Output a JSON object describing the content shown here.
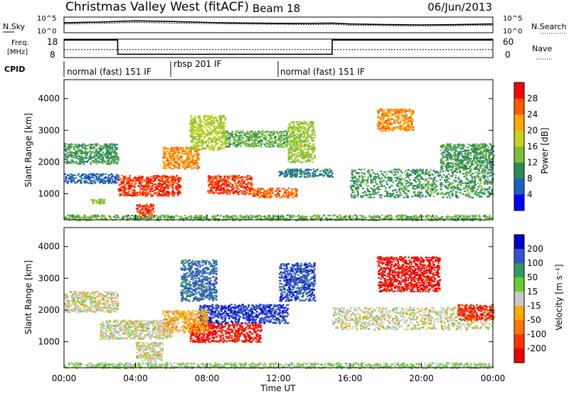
{
  "header": {
    "station": "Christmas Valley West (fitACF)",
    "beam": "Beam 18",
    "date": "06/Jun/2013"
  },
  "noise_panel": {
    "left_label": "N.Sky",
    "right_label": "N.Search",
    "left_ticks": [
      "10^5",
      "10^0"
    ],
    "right_ticks": [
      "10^5",
      "10^0"
    ]
  },
  "freq_panel": {
    "left_label_1": "Freq.",
    "left_label_2": "[MHz]",
    "right_label": "Nave",
    "left_ticks": [
      "18",
      "8"
    ],
    "right_ticks": [
      "60",
      "0"
    ]
  },
  "cpid_panel": {
    "label": "CPID",
    "segments": [
      {
        "name": "normal (fast) 151 IF",
        "start_hour": 0,
        "end_hour": 6
      },
      {
        "name": "rbsp 201 IF",
        "start_hour": 6,
        "end_hour": 12
      },
      {
        "name": "normal (fast) 151 IF",
        "start_hour": 12,
        "end_hour": 24
      }
    ]
  },
  "x_axis": {
    "label": "Time UT",
    "ticks": [
      "00:00",
      "04:00",
      "08:00",
      "12:00",
      "16:00",
      "20:00",
      "00:00"
    ]
  },
  "power_panel": {
    "ylabel": "Slant Range [km]",
    "yticks": [
      "1000",
      "2000",
      "3000",
      "4000"
    ],
    "colorbar_label": "Power [dB]",
    "colorbar_ticks": [
      "28",
      "24",
      "20",
      "16",
      "12",
      "8",
      "4"
    ],
    "colors": [
      "#0000ff",
      "#1f5fbf",
      "#2e8b57",
      "#7cbf3a",
      "#c8d21e",
      "#ffa500",
      "#ff5a00",
      "#ff0000"
    ]
  },
  "velocity_panel": {
    "ylabel": "Slant Range [km]",
    "yticks": [
      "1000",
      "2000",
      "3000",
      "4000"
    ],
    "colorbar_label": "Velocity [m s⁻¹]",
    "colorbar_ticks": [
      "200",
      "100",
      "50",
      "15",
      "-15",
      "-50",
      "-100",
      "-200"
    ],
    "colors": [
      "#0000cc",
      "#3355cc",
      "#339966",
      "#66cc33",
      "#c8c8c8",
      "#ffaa00",
      "#ff7700",
      "#ff3300",
      "#ee0000"
    ]
  },
  "chart_data": [
    {
      "type": "line",
      "title": "N.Sky / N.Search",
      "x": [
        0,
        2,
        4,
        6,
        8,
        10,
        12,
        14,
        15,
        16,
        18,
        20,
        22,
        24
      ],
      "series": [
        {
          "name": "N.Sky",
          "values": [
            3.2,
            3.4,
            3.8,
            3.6,
            3.3,
            3.1,
            3.0,
            3.0,
            3.1,
            2.8,
            2.6,
            2.5,
            2.6,
            2.8
          ]
        },
        {
          "name": "N.Search",
          "values": [
            2.8,
            3.0,
            3.3,
            3.1,
            2.9,
            2.8,
            2.7,
            2.6,
            2.7,
            2.4,
            2.3,
            2.2,
            2.3,
            2.4
          ]
        }
      ],
      "ylim": [
        0,
        5
      ]
    },
    {
      "type": "line",
      "title": "Freq./Nave",
      "x": [
        0,
        3.0,
        3.01,
        15.0,
        15.01,
        24
      ],
      "series": [
        {
          "name": "Freq.",
          "values": [
            17.5,
            17.5,
            9.8,
            9.8,
            17.5,
            17.5
          ]
        },
        {
          "name": "Nave",
          "values": [
            26,
            26,
            26,
            26,
            26,
            26
          ]
        }
      ],
      "ylim": [
        8,
        18
      ]
    },
    {
      "type": "heatmap",
      "title": "Power [dB]",
      "xlabel": "Time UT",
      "ylabel": "Slant Range [km]",
      "xlim": [
        0,
        24
      ],
      "ylim": [
        180,
        4600
      ],
      "value_range": [
        0,
        30
      ],
      "regions": [
        {
          "t0": 0.0,
          "t1": 3.0,
          "r0": 1950,
          "r1": 2600,
          "v": 10
        },
        {
          "t0": 0.0,
          "t1": 3.0,
          "r0": 1350,
          "r1": 1650,
          "v": 6
        },
        {
          "t0": 1.5,
          "t1": 2.3,
          "r0": 700,
          "r1": 850,
          "v": 14
        },
        {
          "t0": 3.0,
          "t1": 6.5,
          "r0": 950,
          "r1": 1600,
          "v": 26
        },
        {
          "t0": 4.0,
          "t1": 5.0,
          "r0": 250,
          "r1": 700,
          "v": 26
        },
        {
          "t0": 5.5,
          "t1": 7.5,
          "r0": 1800,
          "r1": 2500,
          "v": 22
        },
        {
          "t0": 7.0,
          "t1": 9.0,
          "r0": 2400,
          "r1": 3500,
          "v": 16
        },
        {
          "t0": 8.0,
          "t1": 10.5,
          "r0": 1000,
          "r1": 1600,
          "v": 26
        },
        {
          "t0": 9.0,
          "t1": 12.5,
          "r0": 2500,
          "r1": 3000,
          "v": 12
        },
        {
          "t0": 10.5,
          "t1": 13.0,
          "r0": 900,
          "r1": 1200,
          "v": 24
        },
        {
          "t0": 12.5,
          "t1": 14.0,
          "r0": 2000,
          "r1": 3300,
          "v": 14
        },
        {
          "t0": 12.0,
          "t1": 15.0,
          "r0": 1550,
          "r1": 1800,
          "v": 8
        },
        {
          "t0": 16.0,
          "t1": 24.0,
          "r0": 900,
          "r1": 1800,
          "v": 10
        },
        {
          "t0": 17.5,
          "t1": 19.5,
          "r0": 3000,
          "r1": 3700,
          "v": 22
        },
        {
          "t0": 21.0,
          "t1": 24.0,
          "r0": 1800,
          "r1": 2600,
          "v": 10
        },
        {
          "t0": 0.0,
          "t1": 24.0,
          "r0": 180,
          "r1": 350,
          "v": 12
        }
      ]
    },
    {
      "type": "heatmap",
      "title": "Velocity [m s⁻¹]",
      "xlabel": "Time UT",
      "ylabel": "Slant Range [km]",
      "xlim": [
        0,
        24
      ],
      "ylim": [
        180,
        4600
      ],
      "value_range": [
        -250,
        250
      ],
      "regions": [
        {
          "t0": 0.0,
          "t1": 3.0,
          "r0": 1950,
          "r1": 2600,
          "v": 0
        },
        {
          "t0": 2.0,
          "t1": 6.0,
          "r0": 1100,
          "r1": 1700,
          "v": 0
        },
        {
          "t0": 4.0,
          "t1": 5.5,
          "r0": 400,
          "r1": 1000,
          "v": 0
        },
        {
          "t0": 6.5,
          "t1": 8.5,
          "r0": 2300,
          "r1": 3600,
          "v": 150
        },
        {
          "t0": 7.5,
          "t1": 12.5,
          "r0": 1600,
          "r1": 2200,
          "v": 180
        },
        {
          "t0": 7.0,
          "t1": 11.0,
          "r0": 1000,
          "r1": 1600,
          "v": -200
        },
        {
          "t0": 12.0,
          "t1": 14.0,
          "r0": 2300,
          "r1": 3500,
          "v": 170
        },
        {
          "t0": 5.5,
          "t1": 8.0,
          "r0": 1300,
          "r1": 2000,
          "v": -60
        },
        {
          "t0": 15.0,
          "t1": 24.0,
          "r0": 1400,
          "r1": 2100,
          "v": 0
        },
        {
          "t0": 17.5,
          "t1": 21.0,
          "r0": 2600,
          "r1": 3700,
          "v": -220
        },
        {
          "t0": 22.0,
          "t1": 24.0,
          "r0": 1700,
          "r1": 2200,
          "v": -180
        },
        {
          "t0": 0.0,
          "t1": 24.0,
          "r0": 180,
          "r1": 350,
          "v": 40
        }
      ]
    }
  ]
}
